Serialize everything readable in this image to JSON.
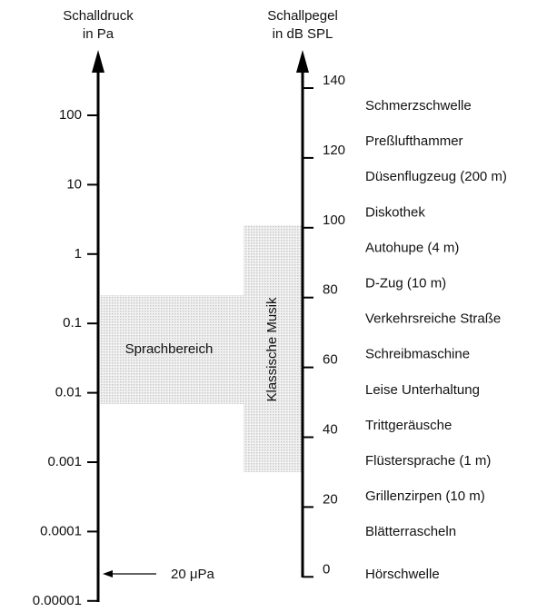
{
  "left_axis": {
    "title": [
      "Schalldruck",
      "in Pa"
    ],
    "ticks": [
      "100",
      "10",
      "1",
      "0.1",
      "0.01",
      "0.001",
      "0.0001",
      "0.00001"
    ],
    "marker": "20 μPa"
  },
  "right_axis": {
    "title": [
      "Schallpegel",
      "in dB SPL"
    ],
    "ticks": [
      "140",
      "120",
      "100",
      "80",
      "60",
      "40",
      "20",
      "0"
    ]
  },
  "regions": {
    "speech": "Sprachbereich",
    "music": "Klassische Musik"
  },
  "sources": [
    "Schmerzschwelle",
    "Preßlufthammer",
    "Düsenflugzeug (200 m)",
    "Diskothek",
    "Autohupe (4 m)",
    "D-Zug (10 m)",
    "Verkehrsreiche Straße",
    "Schreibmaschine",
    "Leise Unterhaltung",
    "Trittgeräusche",
    "Flüstersprache (1 m)",
    "Grillenzirpen (10 m)",
    "Blätterrascheln",
    "Hörschwelle"
  ]
}
